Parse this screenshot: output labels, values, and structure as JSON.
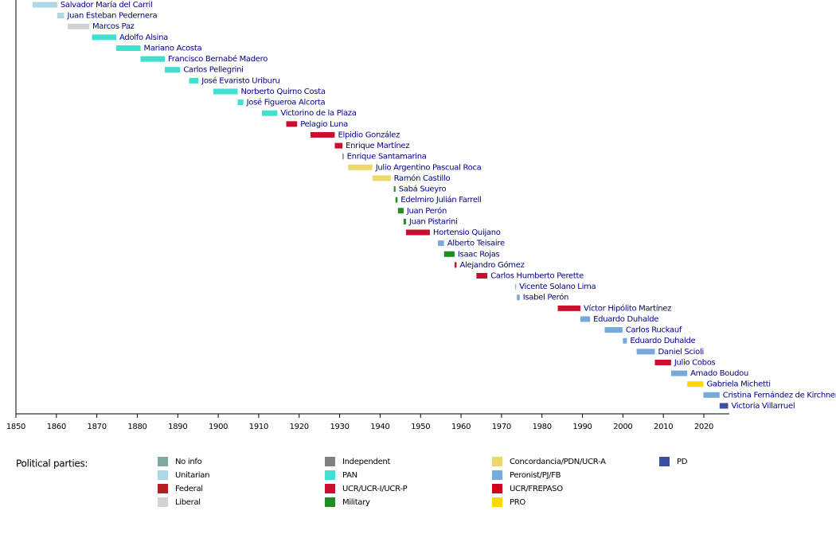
{
  "chart_data": {
    "type": "timeline",
    "xlim": [
      1850,
      2026.3
    ],
    "xticks": [
      1850,
      1860,
      1870,
      1880,
      1890,
      1900,
      1910,
      1920,
      1930,
      1940,
      1950,
      1960,
      1970,
      1980,
      1990,
      2000,
      2010,
      2020
    ],
    "rows": [
      {
        "name": "Salvador María del Carril",
        "start": 1854.1,
        "end": 1860.2,
        "color": "#add8e6"
      },
      {
        "name": "Juan Esteban Pedernera",
        "start": 1860.2,
        "end": 1861.9,
        "color": "#add8e6"
      },
      {
        "name": "Marcos Paz",
        "start": 1862.8,
        "end": 1868.1,
        "color": "#d3d3d3"
      },
      {
        "name": "Adolfo Alsina",
        "start": 1868.8,
        "end": 1874.8,
        "color": "#40e0d0"
      },
      {
        "name": "Mariano Acosta",
        "start": 1874.8,
        "end": 1880.8,
        "color": "#40e0d0"
      },
      {
        "name": "Francisco Bernabé Madero",
        "start": 1880.8,
        "end": 1886.8,
        "color": "#40e0d0"
      },
      {
        "name": "Carlos Pellegrini",
        "start": 1886.8,
        "end": 1890.6,
        "color": "#40e0d0"
      },
      {
        "name": "José Evaristo Uriburu",
        "start": 1892.8,
        "end": 1895.1,
        "color": "#40e0d0"
      },
      {
        "name": "Norberto Quirno Costa",
        "start": 1898.8,
        "end": 1904.8,
        "color": "#40e0d0"
      },
      {
        "name": "José Figueroa Alcorta",
        "start": 1904.8,
        "end": 1906.2,
        "color": "#40e0d0"
      },
      {
        "name": "Victorino de la Plaza",
        "start": 1910.8,
        "end": 1914.6,
        "color": "#40e0d0"
      },
      {
        "name": "Pelagio Luna",
        "start": 1916.8,
        "end": 1919.5,
        "color": "#c8102e"
      },
      {
        "name": "Elpidio González",
        "start": 1922.8,
        "end": 1928.8,
        "color": "#c8102e"
      },
      {
        "name": "Enrique Martínez",
        "start": 1928.8,
        "end": 1930.7,
        "color": "#c8102e"
      },
      {
        "name": "Enrique Santamarina",
        "start": 1930.7,
        "end": 1931.0,
        "color": "#808080"
      },
      {
        "name": "Julio Argentino Pascual Roca",
        "start": 1932.1,
        "end": 1938.1,
        "color": "#eed86a"
      },
      {
        "name": "Ramón Castillo",
        "start": 1938.1,
        "end": 1942.6,
        "color": "#eed86a"
      },
      {
        "name": "Sabá Sueyro",
        "start": 1943.4,
        "end": 1943.8,
        "color": "#228b22"
      },
      {
        "name": "Edelmiro Julián Farrell",
        "start": 1943.8,
        "end": 1944.3,
        "color": "#228b22"
      },
      {
        "name": "Juan Perón",
        "start": 1944.4,
        "end": 1945.8,
        "color": "#228b22"
      },
      {
        "name": "Juan Pistarini",
        "start": 1945.8,
        "end": 1946.4,
        "color": "#228b22"
      },
      {
        "name": "Hortensio Quijano",
        "start": 1946.4,
        "end": 1952.3,
        "color": "#c8102e"
      },
      {
        "name": "Alberto Teisaire",
        "start": 1954.3,
        "end": 1955.8,
        "color": "#75aadb"
      },
      {
        "name": "Isaac Rojas",
        "start": 1955.8,
        "end": 1958.4,
        "color": "#228b22"
      },
      {
        "name": "Alejandro Gómez",
        "start": 1958.4,
        "end": 1958.9,
        "color": "#c8102e"
      },
      {
        "name": "Carlos Humberto Perette",
        "start": 1963.8,
        "end": 1966.5,
        "color": "#c8102e"
      },
      {
        "name": "Vicente Solano Lima",
        "start": 1973.4,
        "end": 1973.6,
        "color": "#75aadb"
      },
      {
        "name": "Isabel Perón",
        "start": 1973.8,
        "end": 1974.5,
        "color": "#75aadb"
      },
      {
        "name": "Víctor Hipólito Martínez",
        "start": 1983.9,
        "end": 1989.5,
        "color": "#c8102e"
      },
      {
        "name": "Eduardo Duhalde",
        "start": 1989.5,
        "end": 1991.9,
        "color": "#75aadb"
      },
      {
        "name": "Carlos Ruckauf",
        "start": 1995.5,
        "end": 1999.9,
        "color": "#75aadb"
      },
      {
        "name": "Eduardo Duhalde",
        "start": 2000.0,
        "end": 2001.0,
        "color": "#75aadb"
      },
      {
        "name": "Daniel Scioli",
        "start": 2003.4,
        "end": 2007.9,
        "color": "#75aadb"
      },
      {
        "name": "Julio Cobos",
        "start": 2007.9,
        "end": 2011.9,
        "color": "#c8102e"
      },
      {
        "name": "Amado Boudou",
        "start": 2011.9,
        "end": 2015.9,
        "color": "#75aadb"
      },
      {
        "name": "Gabriela Michetti",
        "start": 2015.9,
        "end": 2019.9,
        "color": "#ffd700"
      },
      {
        "name": "Cristina Fernández de Kirchner",
        "start": 2019.9,
        "end": 2023.9,
        "color": "#75aadb"
      },
      {
        "name": "Victoria Villarruel",
        "start": 2023.9,
        "end": 2026.0,
        "color": "#3a4fa0"
      }
    ],
    "legend_title": "Political parties:",
    "legend": [
      {
        "name": "No info",
        "color": "#7fa8a0"
      },
      {
        "name": "Unitarian",
        "color": "#add8e6"
      },
      {
        "name": "Federal",
        "color": "#b22222"
      },
      {
        "name": "Liberal",
        "color": "#d3d3d3"
      },
      {
        "name": "Independent",
        "color": "#808080"
      },
      {
        "name": "PAN",
        "color": "#40e0d0"
      },
      {
        "name": "UCR/UCR-I/UCR-P",
        "color": "#c8102e"
      },
      {
        "name": "Military",
        "color": "#228b22"
      },
      {
        "name": "Concordancia/PDN/UCR-A",
        "color": "#eed86a"
      },
      {
        "name": "Peronist/PJ/FB",
        "color": "#75aadb"
      },
      {
        "name": "UCR/FREPASO",
        "color": "#d0021b"
      },
      {
        "name": "PRO",
        "color": "#ffd700"
      },
      {
        "name": "PD",
        "color": "#3a4fa0"
      }
    ]
  }
}
